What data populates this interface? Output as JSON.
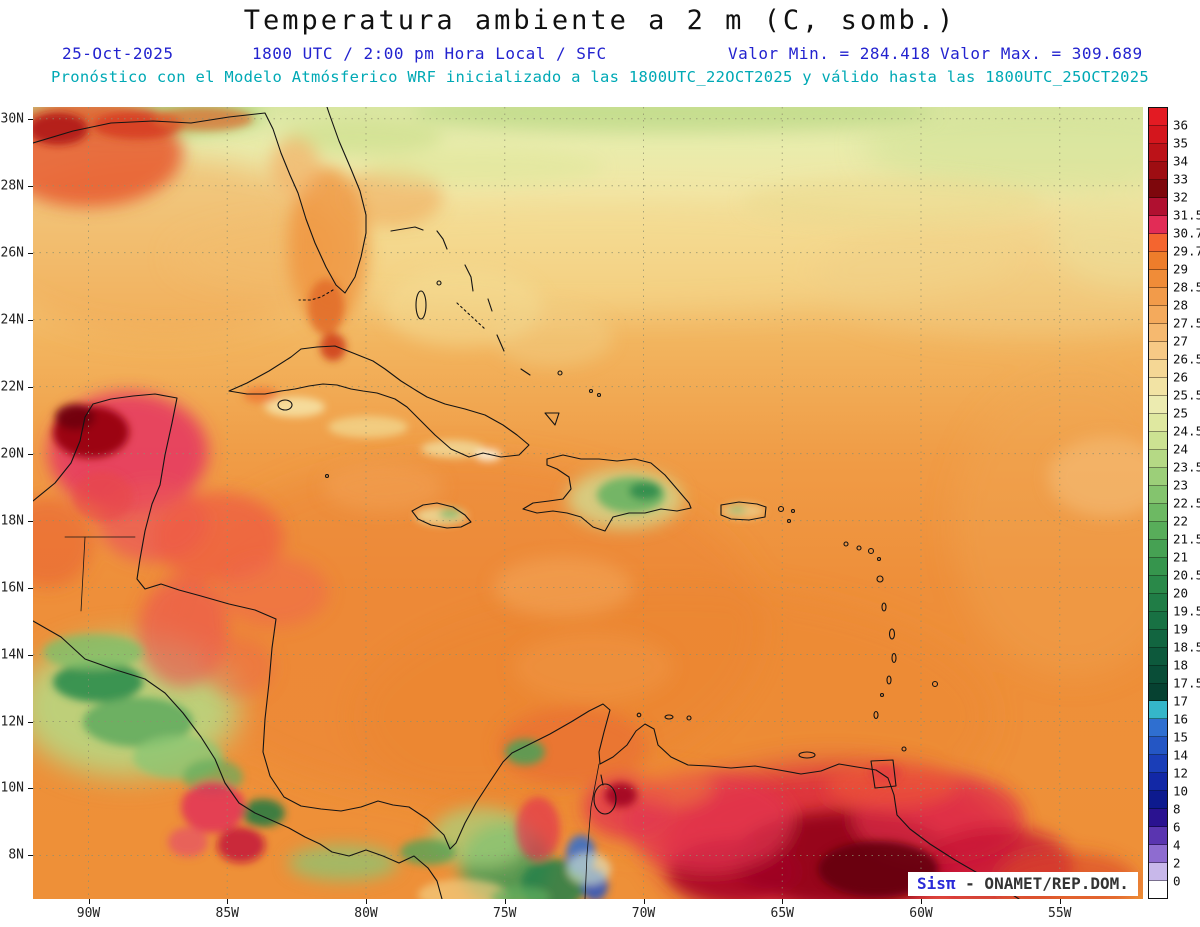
{
  "title": "Temperatura ambiente a 2 m (C, somb.)",
  "header": {
    "date": "25-Oct-2025",
    "time": "1800 UTC / 2:00 pm Hora Local / SFC",
    "min": "Valor Min. = 284.418",
    "max": "Valor Max. = 309.689",
    "model_line": "Pronóstico con el Modelo Atmósferico WRF inicializado a las 1800UTC_22OCT2025 y válido hasta las 1800UTC_25OCT2025"
  },
  "attribution": {
    "brand": "Sisπ",
    "text": " - ONAMET/REP.DOM."
  },
  "colors": {
    "header_blue": "#2323cf",
    "header_cyan": "#00a9b5",
    "brand_blue": "#2a2ad8"
  },
  "chart_data": {
    "type": "heatmap",
    "title": "Temperatura ambiente a 2 m (C, somb.)",
    "valid_date": "25-Oct-2025",
    "valid_time": "1800 UTC / 2:00 pm Hora Local / SFC",
    "model_info": "WRF inicializado a las 1800UTC_22OCT2025, válido hasta las 1800UTC_25OCT2025",
    "value_min": 284.418,
    "value_max": 309.689,
    "units": "C (somb.)",
    "lon_range": [
      -92,
      -52
    ],
    "lat_range": [
      6.7,
      30.35
    ],
    "grid": "dotted",
    "legend_position": "right",
    "lat_ticks": [
      {
        "label": "30N",
        "value": 30
      },
      {
        "label": "28N",
        "value": 28
      },
      {
        "label": "26N",
        "value": 26
      },
      {
        "label": "24N",
        "value": 24
      },
      {
        "label": "22N",
        "value": 22
      },
      {
        "label": "20N",
        "value": 20
      },
      {
        "label": "18N",
        "value": 18
      },
      {
        "label": "16N",
        "value": 16
      },
      {
        "label": "14N",
        "value": 14
      },
      {
        "label": "12N",
        "value": 12
      },
      {
        "label": "10N",
        "value": 10
      },
      {
        "label": "8N",
        "value": 8
      }
    ],
    "lon_ticks": [
      {
        "label": "90W",
        "value": -90
      },
      {
        "label": "85W",
        "value": -85
      },
      {
        "label": "80W",
        "value": -80
      },
      {
        "label": "75W",
        "value": -75
      },
      {
        "label": "70W",
        "value": -70
      },
      {
        "label": "65W",
        "value": -65
      },
      {
        "label": "60W",
        "value": -60
      },
      {
        "label": "55W",
        "value": -55
      }
    ],
    "colorbar": {
      "labels": [
        "36",
        "35",
        "34",
        "33",
        "32",
        "31.5",
        "30.7",
        "29.7",
        "29",
        "28.5",
        "28",
        "27.5",
        "27",
        "26.5",
        "26",
        "25.5",
        "25",
        "24.5",
        "24",
        "23.5",
        "23",
        "22.5",
        "22",
        "21.5",
        "21",
        "20.5",
        "20",
        "19.5",
        "19",
        "18.5",
        "18",
        "17.5",
        "17",
        "16",
        "15",
        "14",
        "12",
        "10",
        "8",
        "6",
        "4",
        "2",
        "0"
      ],
      "segment_colors": [
        "#e31b23",
        "#d4161d",
        "#bc1218",
        "#9e0d12",
        "#7e070c",
        "#b01030",
        "#e22c56",
        "#f4652f",
        "#ed7d2b",
        "#f08c38",
        "#f29b4a",
        "#f4aa5c",
        "#f6b96f",
        "#f7c985",
        "#f5d795",
        "#f2e3a4",
        "#ecebb0",
        "#dfe8a0",
        "#cce292",
        "#b5d985",
        "#9ccf79",
        "#84c46e",
        "#6db963",
        "#58ad5a",
        "#46a153",
        "#36954d",
        "#2a8949",
        "#207d46",
        "#187143",
        "#126540",
        "#0d593c",
        "#094d37",
        "#064131",
        "#35b6c9",
        "#2f6fd0",
        "#2456c4",
        "#1a3eb8",
        "#1228a6",
        "#0d1a8e",
        "#2a1290",
        "#5a35b0",
        "#8e6cd0",
        "#c8b8ea",
        "#ffffff"
      ]
    }
  }
}
